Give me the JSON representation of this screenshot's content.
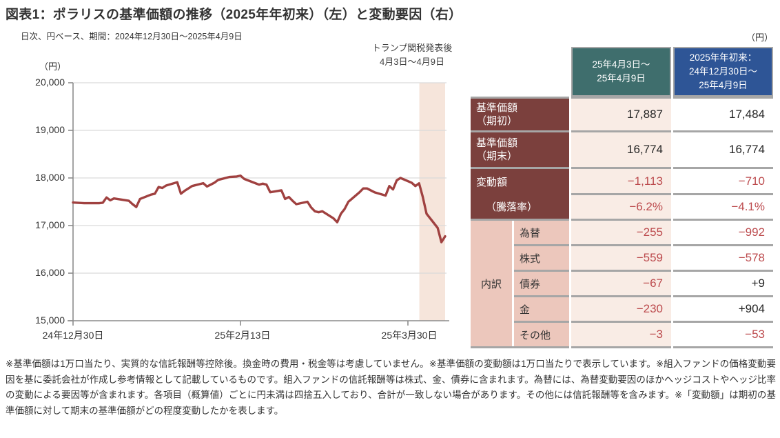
{
  "report": {
    "title": "図表1：ポラリスの基準価額の推移（2025年年初来）（左）と変動要因（右）",
    "subtitle": "日次、円ベース、期間：2024年12月30日～2025年4月9日",
    "footnote": "※基準価額は1万口当たり、実質的な信託報酬等控除後。換金時の費用・税金等は考慮していません。※基準価額の変動額は1万口当たりで表示しています。※組入ファンドの価格変動要因を基に委託会社が作成し参考情報として記載しているものです。組入ファンドの信託報酬等は株式、金、債券に含まれます。為替には、為替変動要因のほかヘッジコストやヘッジ比率の変動による要因等が含まれます。各項目（概算値）ごとに円未満は四捨五入しており、合計が一致しない場合があります。その他には信託報酬等を含みます。※「変動額」は期初の基準価額に対して期末の基準価額がどの程度変動したかを表します。"
  },
  "chart": {
    "unit_label": "（円）",
    "annotation": {
      "line1": "トランプ関税発表後",
      "line2": "4月3日～4月9日"
    },
    "colors": {
      "line": "#a04140",
      "band": "#f6e5db",
      "grid": "#d9d9d9",
      "axis": "#8c8c8c"
    }
  },
  "chart_data": {
    "type": "line",
    "title": "ポラリスの基準価額の推移（2025年年初来）",
    "ylabel": "円",
    "ylim": [
      15000,
      20000
    ],
    "x_range": [
      "2024-12-30",
      "2025-04-09"
    ],
    "grid": true,
    "legend": false,
    "y_ticks": [
      20000,
      19000,
      18000,
      17000,
      16000,
      15000
    ],
    "y_tick_labels": [
      "20,000",
      "19,000",
      "18,000",
      "17,000",
      "16,000",
      "15,000"
    ],
    "x_tick_dates": [
      "2024-12-30",
      "2025-02-13",
      "2025-03-30"
    ],
    "x_tick_labels": [
      "24年12月30日",
      "25年2月13日",
      "25年3月30日"
    ],
    "highlight_band": {
      "start": "2025-04-03",
      "end": "2025-04-09",
      "label": "トランプ関税発表後 4月3日～4月9日"
    },
    "series": [
      {
        "name": "基準価額",
        "points": [
          [
            "2024-12-30",
            17484
          ],
          [
            "2024-12-31",
            17480
          ],
          [
            "2025-01-02",
            17470
          ],
          [
            "2025-01-03",
            17470
          ],
          [
            "2025-01-06",
            17470
          ],
          [
            "2025-01-07",
            17480
          ],
          [
            "2025-01-08",
            17590
          ],
          [
            "2025-01-09",
            17530
          ],
          [
            "2025-01-10",
            17570
          ],
          [
            "2025-01-14",
            17520
          ],
          [
            "2025-01-15",
            17450
          ],
          [
            "2025-01-16",
            17390
          ],
          [
            "2025-01-17",
            17560
          ],
          [
            "2025-01-20",
            17650
          ],
          [
            "2025-01-21",
            17670
          ],
          [
            "2025-01-22",
            17810
          ],
          [
            "2025-01-23",
            17790
          ],
          [
            "2025-01-24",
            17840
          ],
          [
            "2025-01-27",
            17910
          ],
          [
            "2025-01-28",
            17670
          ],
          [
            "2025-01-29",
            17730
          ],
          [
            "2025-01-30",
            17780
          ],
          [
            "2025-01-31",
            17830
          ],
          [
            "2025-02-03",
            17890
          ],
          [
            "2025-02-04",
            17820
          ],
          [
            "2025-02-05",
            17860
          ],
          [
            "2025-02-06",
            17900
          ],
          [
            "2025-02-07",
            17960
          ],
          [
            "2025-02-10",
            18020
          ],
          [
            "2025-02-12",
            18030
          ],
          [
            "2025-02-13",
            18050
          ],
          [
            "2025-02-14",
            17980
          ],
          [
            "2025-02-17",
            17890
          ],
          [
            "2025-02-18",
            17860
          ],
          [
            "2025-02-19",
            17880
          ],
          [
            "2025-02-20",
            17860
          ],
          [
            "2025-02-21",
            17700
          ],
          [
            "2025-02-24",
            17740
          ],
          [
            "2025-02-25",
            17560
          ],
          [
            "2025-02-26",
            17600
          ],
          [
            "2025-02-27",
            17520
          ],
          [
            "2025-02-28",
            17450
          ],
          [
            "2025-03-03",
            17500
          ],
          [
            "2025-03-04",
            17380
          ],
          [
            "2025-03-05",
            17300
          ],
          [
            "2025-03-06",
            17280
          ],
          [
            "2025-03-07",
            17300
          ],
          [
            "2025-03-10",
            17150
          ],
          [
            "2025-03-11",
            17070
          ],
          [
            "2025-03-12",
            17250
          ],
          [
            "2025-03-13",
            17350
          ],
          [
            "2025-03-14",
            17500
          ],
          [
            "2025-03-17",
            17700
          ],
          [
            "2025-03-18",
            17780
          ],
          [
            "2025-03-19",
            17780
          ],
          [
            "2025-03-21",
            17700
          ],
          [
            "2025-03-24",
            17630
          ],
          [
            "2025-03-25",
            17830
          ],
          [
            "2025-03-26",
            17760
          ],
          [
            "2025-03-27",
            17950
          ],
          [
            "2025-03-28",
            18000
          ],
          [
            "2025-03-31",
            17900
          ],
          [
            "2025-04-01",
            17830
          ],
          [
            "2025-04-02",
            17887
          ],
          [
            "2025-04-03",
            17600
          ],
          [
            "2025-04-04",
            17250
          ],
          [
            "2025-04-07",
            16950
          ],
          [
            "2025-04-08",
            16650
          ],
          [
            "2025-04-09",
            16774
          ]
        ]
      }
    ]
  },
  "table": {
    "unit_label": "（円）",
    "col_headers": [
      "25年4月3日～\n25年4月9日",
      "2025年年初来：\n24年12月30日～\n25年4月9日"
    ],
    "rows": [
      {
        "label": "基準価額\n（期初）",
        "values": [
          "17,887",
          "17,484"
        ]
      },
      {
        "label": "基準価額\n（期末）",
        "values": [
          "16,774",
          "16,774"
        ]
      },
      {
        "label": "変動額",
        "values": [
          "−1,113",
          "−710"
        ]
      },
      {
        "label": "（騰落率）",
        "values": [
          "−6.2%",
          "−4.1%"
        ]
      },
      {
        "group": "内訳",
        "label": "為替",
        "values": [
          "−255",
          "−992"
        ]
      },
      {
        "label": "株式",
        "values": [
          "−559",
          "−578"
        ]
      },
      {
        "label": "債券",
        "values": [
          "−67",
          "+9"
        ]
      },
      {
        "label": "金",
        "values": [
          "−230",
          "+904"
        ]
      },
      {
        "label": "その他",
        "values": [
          "−3",
          "−53"
        ]
      }
    ]
  }
}
